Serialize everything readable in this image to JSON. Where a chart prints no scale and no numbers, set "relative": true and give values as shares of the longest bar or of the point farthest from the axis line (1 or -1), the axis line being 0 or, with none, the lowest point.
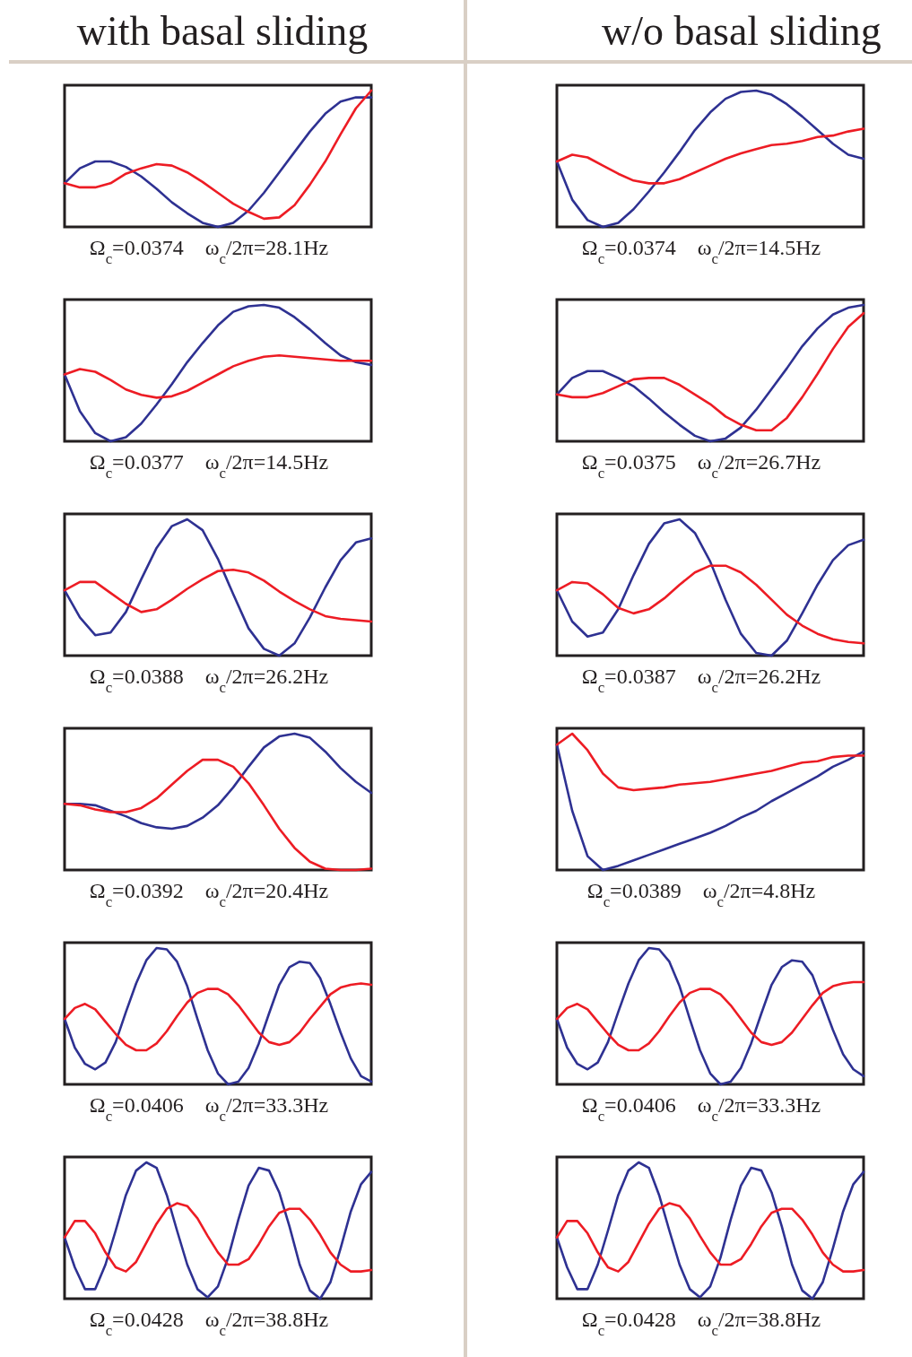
{
  "chart_data": [
    {
      "type": "line",
      "relative": true,
      "title": "with basal sliding",
      "xlabel": "Ω$_{c}$=0.0374    ω$_{c}$/2π=28.1Hz",
      "categories": [
        null,
        null,
        null,
        null,
        null,
        null,
        null,
        null,
        null,
        null,
        null,
        null,
        null,
        null,
        null,
        null,
        null,
        null,
        null,
        null,
        null
      ],
      "series": [
        {
          "color": "#2e3192",
          "values": [
            0.32,
            0.43,
            0.48,
            0.48,
            0.44,
            0.37,
            0.28,
            0.18,
            0.1,
            0.03,
            0,
            0.03,
            0.12,
            0.25,
            0.4,
            0.55,
            0.7,
            0.83,
            0.92,
            0.95,
            0.95
          ]
        },
        {
          "color": "#ed1c24",
          "values": [
            0.32,
            0.29,
            0.29,
            0.32,
            0.39,
            0.43,
            0.46,
            0.45,
            0.4,
            0.33,
            0.25,
            0.17,
            0.11,
            0.06,
            0.07,
            0.16,
            0.31,
            0.48,
            0.68,
            0.87,
            1.0
          ]
        }
      ]
    },
    {
      "type": "line",
      "relative": true,
      "title": "w/o basal sliding",
      "xlabel": "Ω$_{c}$=0.0374    ω$_{c}$/2π=14.5Hz",
      "categories": [
        null,
        null,
        null,
        null,
        null,
        null,
        null,
        null,
        null,
        null,
        null,
        null,
        null,
        null,
        null,
        null,
        null,
        null,
        null,
        null,
        null
      ],
      "series": [
        {
          "color": "#2e3192",
          "values": [
            0.48,
            0.2,
            0.05,
            0,
            0.03,
            0.13,
            0.26,
            0.4,
            0.55,
            0.71,
            0.84,
            0.94,
            0.99,
            1,
            0.97,
            0.9,
            0.81,
            0.71,
            0.61,
            0.53,
            0.5
          ]
        },
        {
          "color": "#ed1c24",
          "values": [
            0.48,
            0.53,
            0.51,
            0.45,
            0.39,
            0.34,
            0.32,
            0.32,
            0.35,
            0.4,
            0.45,
            0.5,
            0.54,
            0.57,
            0.6,
            0.61,
            0.63,
            0.66,
            0.67,
            0.7,
            0.72
          ]
        }
      ]
    },
    {
      "type": "line",
      "relative": true,
      "xlabel": "Ω$_{c}$=0.0377    ω$_{c}$/2π=14.5Hz",
      "categories": [
        null,
        null,
        null,
        null,
        null,
        null,
        null,
        null,
        null,
        null,
        null,
        null,
        null,
        null,
        null,
        null,
        null,
        null,
        null,
        null,
        null
      ],
      "series": [
        {
          "color": "#2e3192",
          "values": [
            0.49,
            0.22,
            0.06,
            0,
            0.03,
            0.13,
            0.27,
            0.42,
            0.58,
            0.72,
            0.85,
            0.95,
            0.99,
            1,
            0.98,
            0.91,
            0.82,
            0.72,
            0.63,
            0.58,
            0.56
          ]
        },
        {
          "color": "#ed1c24",
          "values": [
            0.49,
            0.53,
            0.51,
            0.45,
            0.38,
            0.34,
            0.32,
            0.33,
            0.37,
            0.43,
            0.49,
            0.55,
            0.59,
            0.62,
            0.63,
            0.62,
            0.61,
            0.6,
            0.59,
            0.59,
            0.59
          ]
        }
      ]
    },
    {
      "type": "line",
      "relative": true,
      "xlabel": "Ω$_{c}$=0.0375    ω$_{c}$/2π=26.7Hz",
      "categories": [
        null,
        null,
        null,
        null,
        null,
        null,
        null,
        null,
        null,
        null,
        null,
        null,
        null,
        null,
        null,
        null,
        null,
        null,
        null,
        null,
        null
      ],
      "series": [
        {
          "color": "#2e3192",
          "values": [
            0.35,
            0.47,
            0.52,
            0.52,
            0.47,
            0.41,
            0.32,
            0.22,
            0.13,
            0.05,
            0.01,
            0.03,
            0.11,
            0.24,
            0.39,
            0.54,
            0.7,
            0.83,
            0.93,
            0.98,
            1
          ]
        },
        {
          "color": "#ed1c24",
          "values": [
            0.35,
            0.33,
            0.33,
            0.36,
            0.41,
            0.46,
            0.47,
            0.47,
            0.42,
            0.35,
            0.28,
            0.19,
            0.13,
            0.09,
            0.09,
            0.18,
            0.33,
            0.5,
            0.68,
            0.84,
            0.94
          ]
        }
      ]
    },
    {
      "type": "line",
      "relative": true,
      "xlabel": "Ω$_{c}$=0.0388    ω$_{c}$/2π=26.2Hz",
      "categories": [
        null,
        null,
        null,
        null,
        null,
        null,
        null,
        null,
        null,
        null,
        null,
        null,
        null,
        null,
        null,
        null,
        null,
        null,
        null,
        null,
        null
      ],
      "series": [
        {
          "color": "#2e3192",
          "values": [
            0.48,
            0.28,
            0.15,
            0.17,
            0.32,
            0.56,
            0.79,
            0.95,
            1,
            0.92,
            0.71,
            0.45,
            0.2,
            0.05,
            0,
            0.09,
            0.28,
            0.5,
            0.7,
            0.83,
            0.86
          ]
        },
        {
          "color": "#ed1c24",
          "values": [
            0.48,
            0.54,
            0.54,
            0.46,
            0.38,
            0.32,
            0.34,
            0.41,
            0.49,
            0.56,
            0.62,
            0.63,
            0.61,
            0.55,
            0.47,
            0.4,
            0.34,
            0.29,
            0.27,
            0.26,
            0.25
          ]
        }
      ]
    },
    {
      "type": "line",
      "relative": true,
      "xlabel": "Ω$_{c}$=0.0387    ω$_{c}$/2π=26.2Hz",
      "categories": [
        null,
        null,
        null,
        null,
        null,
        null,
        null,
        null,
        null,
        null,
        null,
        null,
        null,
        null,
        null,
        null,
        null,
        null,
        null,
        null,
        null
      ],
      "series": [
        {
          "color": "#2e3192",
          "values": [
            0.48,
            0.25,
            0.14,
            0.17,
            0.34,
            0.59,
            0.82,
            0.97,
            1,
            0.9,
            0.69,
            0.41,
            0.16,
            0.02,
            0,
            0.11,
            0.31,
            0.52,
            0.7,
            0.81,
            0.85
          ]
        },
        {
          "color": "#ed1c24",
          "values": [
            0.48,
            0.54,
            0.53,
            0.45,
            0.35,
            0.31,
            0.34,
            0.42,
            0.52,
            0.61,
            0.66,
            0.66,
            0.61,
            0.52,
            0.41,
            0.3,
            0.22,
            0.16,
            0.12,
            0.1,
            0.09
          ]
        }
      ]
    },
    {
      "type": "line",
      "relative": true,
      "xlabel": "Ω$_{c}$=0.0392    ω$_{c}$/2π=20.4Hz",
      "categories": [
        null,
        null,
        null,
        null,
        null,
        null,
        null,
        null,
        null,
        null,
        null,
        null,
        null,
        null,
        null,
        null,
        null,
        null,
        null,
        null,
        null
      ],
      "series": [
        {
          "color": "#2e3192",
          "values": [
            0.49,
            0.49,
            0.48,
            0.44,
            0.4,
            0.35,
            0.32,
            0.31,
            0.33,
            0.39,
            0.48,
            0.61,
            0.76,
            0.9,
            0.98,
            1,
            0.97,
            0.87,
            0.75,
            0.65,
            0.57
          ]
        },
        {
          "color": "#ed1c24",
          "values": [
            0.49,
            0.48,
            0.45,
            0.43,
            0.43,
            0.46,
            0.53,
            0.63,
            0.73,
            0.81,
            0.81,
            0.76,
            0.64,
            0.48,
            0.31,
            0.17,
            0.07,
            0.02,
            0.01,
            0.01,
            0.02
          ]
        }
      ]
    },
    {
      "type": "line",
      "relative": true,
      "xlabel": "Ω$_{c}$=0.0389    ω$_{c}$/2π=4.8Hz",
      "categories": [
        null,
        null,
        null,
        null,
        null,
        null,
        null,
        null,
        null,
        null,
        null,
        null,
        null,
        null,
        null,
        null,
        null,
        null,
        null,
        null,
        null
      ],
      "series": [
        {
          "color": "#2e3192",
          "values": [
            0.92,
            0.44,
            0.11,
            0.01,
            0.04,
            0.08,
            0.12,
            0.16,
            0.2,
            0.24,
            0.28,
            0.33,
            0.39,
            0.44,
            0.51,
            0.57,
            0.63,
            0.69,
            0.76,
            0.81,
            0.87
          ]
        },
        {
          "color": "#ed1c24",
          "values": [
            0.92,
            1,
            0.88,
            0.71,
            0.61,
            0.59,
            0.6,
            0.61,
            0.63,
            0.64,
            0.65,
            0.67,
            0.69,
            0.71,
            0.73,
            0.76,
            0.79,
            0.8,
            0.83,
            0.84,
            0.84
          ]
        }
      ]
    },
    {
      "type": "line",
      "relative": true,
      "xlabel": "Ω$_{c}$=0.0406    ω$_{c}$/2π=33.3Hz",
      "categories": [
        null,
        null,
        null,
        null,
        null,
        null,
        null,
        null,
        null,
        null,
        null,
        null,
        null,
        null,
        null,
        null,
        null,
        null,
        null,
        null,
        null,
        null,
        null,
        null,
        null,
        null,
        null,
        null,
        null,
        null,
        null
      ],
      "series": [
        {
          "color": "#2e3192",
          "values": [
            0.48,
            0.27,
            0.15,
            0.11,
            0.16,
            0.31,
            0.53,
            0.74,
            0.91,
            1,
            0.99,
            0.9,
            0.72,
            0.48,
            0.25,
            0.08,
            0,
            0.02,
            0.12,
            0.3,
            0.52,
            0.73,
            0.86,
            0.9,
            0.89,
            0.78,
            0.59,
            0.38,
            0.19,
            0.06,
            0.02
          ]
        },
        {
          "color": "#ed1c24",
          "values": [
            0.48,
            0.56,
            0.59,
            0.55,
            0.46,
            0.37,
            0.29,
            0.25,
            0.25,
            0.3,
            0.39,
            0.5,
            0.6,
            0.67,
            0.7,
            0.7,
            0.66,
            0.58,
            0.48,
            0.38,
            0.31,
            0.29,
            0.31,
            0.38,
            0.48,
            0.57,
            0.66,
            0.71,
            0.73,
            0.74,
            0.73
          ]
        }
      ]
    },
    {
      "type": "line",
      "relative": true,
      "xlabel": "Ω$_{c}$=0.0406    ω$_{c}$/2π=33.3Hz",
      "categories": [
        null,
        null,
        null,
        null,
        null,
        null,
        null,
        null,
        null,
        null,
        null,
        null,
        null,
        null,
        null,
        null,
        null,
        null,
        null,
        null,
        null,
        null,
        null,
        null,
        null,
        null,
        null,
        null,
        null,
        null,
        null
      ],
      "series": [
        {
          "color": "#2e3192",
          "values": [
            0.48,
            0.27,
            0.15,
            0.11,
            0.16,
            0.31,
            0.53,
            0.74,
            0.91,
            1,
            0.99,
            0.9,
            0.72,
            0.48,
            0.25,
            0.08,
            0,
            0.02,
            0.12,
            0.3,
            0.52,
            0.73,
            0.86,
            0.91,
            0.9,
            0.8,
            0.6,
            0.4,
            0.22,
            0.11,
            0.06
          ]
        },
        {
          "color": "#ed1c24",
          "values": [
            0.48,
            0.56,
            0.59,
            0.55,
            0.46,
            0.37,
            0.29,
            0.25,
            0.25,
            0.3,
            0.39,
            0.5,
            0.6,
            0.67,
            0.7,
            0.7,
            0.66,
            0.58,
            0.48,
            0.38,
            0.31,
            0.29,
            0.31,
            0.38,
            0.48,
            0.58,
            0.67,
            0.72,
            0.74,
            0.75,
            0.75
          ]
        }
      ]
    },
    {
      "type": "line",
      "relative": true,
      "xlabel": "Ω$_{c}$=0.0428    ω$_{c}$/2π=38.8Hz",
      "categories": [
        null,
        null,
        null,
        null,
        null,
        null,
        null,
        null,
        null,
        null,
        null,
        null,
        null,
        null,
        null,
        null,
        null,
        null,
        null,
        null,
        null,
        null,
        null,
        null,
        null,
        null,
        null,
        null,
        null,
        null,
        null
      ],
      "series": [
        {
          "color": "#2e3192",
          "values": [
            0.45,
            0.23,
            0.07,
            0.07,
            0.25,
            0.5,
            0.76,
            0.94,
            1,
            0.96,
            0.76,
            0.5,
            0.25,
            0.07,
            0.01,
            0.09,
            0.3,
            0.58,
            0.83,
            0.96,
            0.94,
            0.78,
            0.53,
            0.25,
            0.06,
            0,
            0.12,
            0.37,
            0.64,
            0.84,
            0.93
          ]
        },
        {
          "color": "#ed1c24",
          "values": [
            0.45,
            0.57,
            0.57,
            0.48,
            0.34,
            0.23,
            0.2,
            0.27,
            0.41,
            0.55,
            0.66,
            0.7,
            0.68,
            0.59,
            0.46,
            0.34,
            0.25,
            0.25,
            0.29,
            0.4,
            0.53,
            0.63,
            0.66,
            0.66,
            0.58,
            0.47,
            0.34,
            0.25,
            0.2,
            0.2,
            0.21
          ]
        }
      ]
    },
    {
      "type": "line",
      "relative": true,
      "xlabel": "Ω$_{c}$=0.0428    ω$_{c}$/2π=38.8Hz",
      "categories": [
        null,
        null,
        null,
        null,
        null,
        null,
        null,
        null,
        null,
        null,
        null,
        null,
        null,
        null,
        null,
        null,
        null,
        null,
        null,
        null,
        null,
        null,
        null,
        null,
        null,
        null,
        null,
        null,
        null,
        null,
        null
      ],
      "series": [
        {
          "color": "#2e3192",
          "values": [
            0.45,
            0.23,
            0.07,
            0.07,
            0.25,
            0.5,
            0.76,
            0.94,
            1,
            0.96,
            0.76,
            0.5,
            0.25,
            0.07,
            0.01,
            0.09,
            0.3,
            0.58,
            0.83,
            0.96,
            0.94,
            0.78,
            0.53,
            0.25,
            0.06,
            0,
            0.12,
            0.37,
            0.64,
            0.84,
            0.93
          ]
        },
        {
          "color": "#ed1c24",
          "values": [
            0.45,
            0.57,
            0.57,
            0.48,
            0.34,
            0.23,
            0.2,
            0.27,
            0.41,
            0.55,
            0.66,
            0.7,
            0.68,
            0.59,
            0.46,
            0.34,
            0.25,
            0.25,
            0.29,
            0.4,
            0.53,
            0.63,
            0.66,
            0.66,
            0.58,
            0.47,
            0.34,
            0.25,
            0.2,
            0.2,
            0.21
          ]
        }
      ]
    }
  ]
}
